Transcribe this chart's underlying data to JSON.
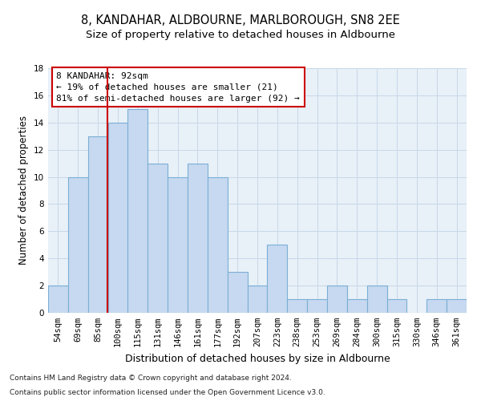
{
  "title": "8, KANDAHAR, ALDBOURNE, MARLBOROUGH, SN8 2EE",
  "subtitle": "Size of property relative to detached houses in Aldbourne",
  "xlabel": "Distribution of detached houses by size in Aldbourne",
  "ylabel": "Number of detached properties",
  "footnote1": "Contains HM Land Registry data © Crown copyright and database right 2024.",
  "footnote2": "Contains public sector information licensed under the Open Government Licence v3.0.",
  "categories": [
    "54sqm",
    "69sqm",
    "85sqm",
    "100sqm",
    "115sqm",
    "131sqm",
    "146sqm",
    "161sqm",
    "177sqm",
    "192sqm",
    "207sqm",
    "223sqm",
    "238sqm",
    "253sqm",
    "269sqm",
    "284sqm",
    "300sqm",
    "315sqm",
    "330sqm",
    "346sqm",
    "361sqm"
  ],
  "values": [
    2,
    10,
    13,
    14,
    15,
    11,
    10,
    11,
    10,
    3,
    2,
    5,
    1,
    1,
    2,
    1,
    2,
    1,
    0,
    1,
    1
  ],
  "bar_color": "#c6d9f0",
  "bar_edge_color": "#7bafd4",
  "bar_linewidth": 0.8,
  "grid_color": "#c8d8e8",
  "vline_color": "#cc0000",
  "vline_x": 2.47,
  "property_label": "8 KANDAHAR: 92sqm",
  "annotation_line1": "← 19% of detached houses are smaller (21)",
  "annotation_line2": "81% of semi-detached houses are larger (92) →",
  "ylim": [
    0,
    18
  ],
  "yticks": [
    0,
    2,
    4,
    6,
    8,
    10,
    12,
    14,
    16,
    18
  ],
  "title_fontsize": 10.5,
  "subtitle_fontsize": 9.5,
  "annotation_fontsize": 8,
  "xlabel_fontsize": 9,
  "ylabel_fontsize": 8.5,
  "tick_fontsize": 7.5,
  "footnote_fontsize": 6.5,
  "background_color": "#ffffff",
  "axes_bg_color": "#e8f0f8"
}
